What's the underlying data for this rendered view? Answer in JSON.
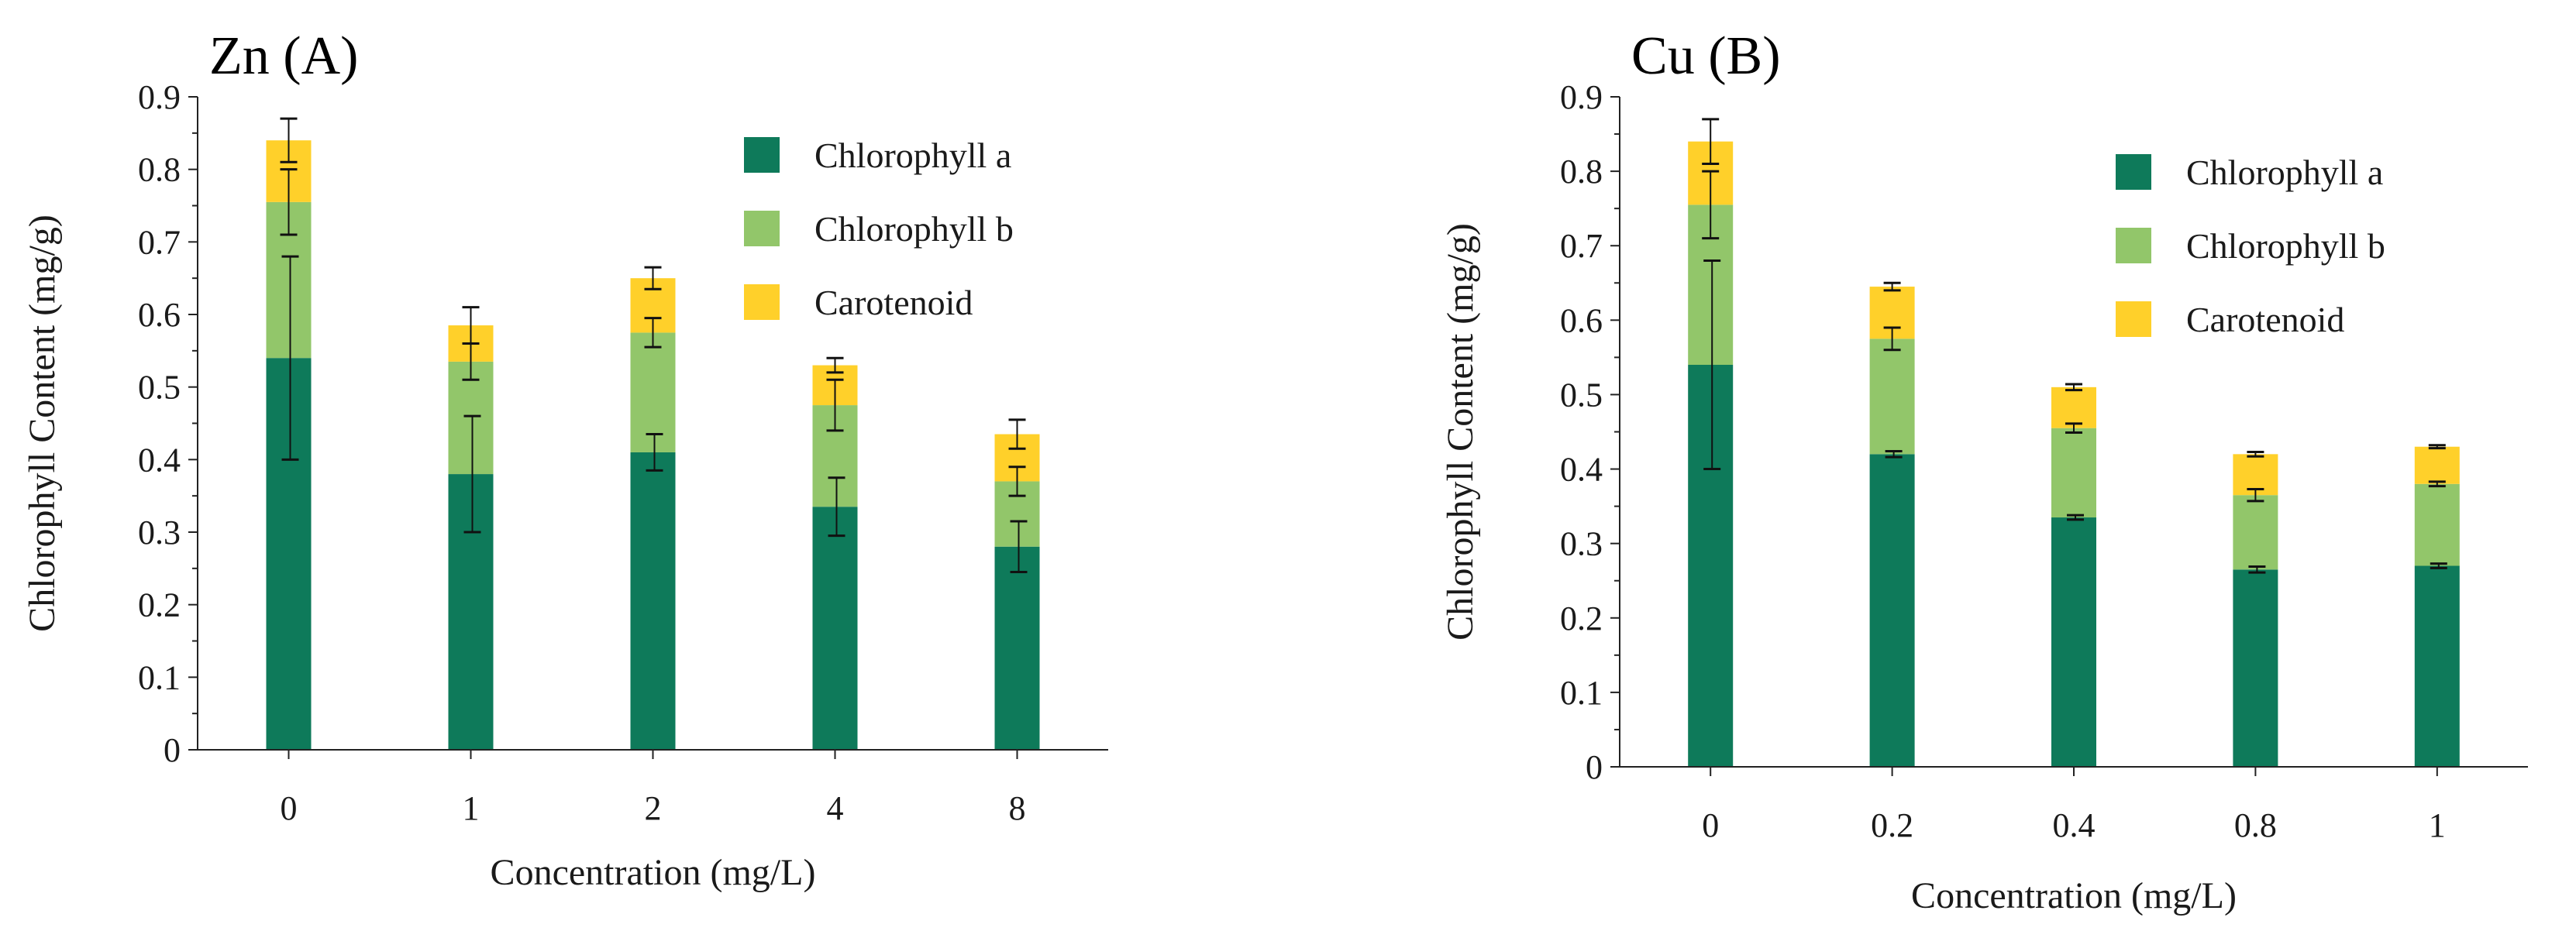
{
  "colors": {
    "chl_a": "#0e7a5a",
    "chl_b": "#92c66a",
    "carotenoid": "#ffd02a",
    "axis": "#222222",
    "errorbar": "#111111"
  },
  "chart_data": [
    {
      "type": "bar",
      "stacked": true,
      "title": "Zn (A)",
      "xlabel": "Concentration (mg/L)",
      "ylabel": "Chlorophyll Content (mg/g)",
      "ylim": [
        0,
        0.9
      ],
      "yticks": [
        "0",
        "0.1",
        "0.2",
        "0.3",
        "0.4",
        "0.5",
        "0.6",
        "0.7",
        "0.8",
        "0.9"
      ],
      "categories": [
        "0",
        "1",
        "2",
        "4",
        "8"
      ],
      "legend": [
        "Chlorophyll a",
        "Chlorophyll b",
        "Carotenoid"
      ],
      "legend_position": "top-right",
      "series": [
        {
          "name": "Chlorophyll a",
          "values": [
            0.54,
            0.38,
            0.41,
            0.335,
            0.28
          ],
          "errors": [
            0.14,
            0.08,
            0.025,
            0.04,
            0.035
          ]
        },
        {
          "name": "Chlorophyll b",
          "values": [
            0.215,
            0.155,
            0.165,
            0.14,
            0.09
          ],
          "errors": [
            0.045,
            0.025,
            0.02,
            0.035,
            0.02
          ]
        },
        {
          "name": "Carotenoid",
          "values": [
            0.085,
            0.05,
            0.075,
            0.055,
            0.065
          ],
          "errors": [
            0.03,
            0.025,
            0.015,
            0.01,
            0.02
          ]
        }
      ]
    },
    {
      "type": "bar",
      "stacked": true,
      "title": "Cu (B)",
      "xlabel": "Concentration (mg/L)",
      "ylabel": "Chlorophyll Content (mg/g)",
      "ylim": [
        0,
        0.9
      ],
      "yticks": [
        "0",
        "0.1",
        "0.2",
        "0.3",
        "0.4",
        "0.5",
        "0.6",
        "0.7",
        "0.8",
        "0.9"
      ],
      "categories": [
        "0",
        "0.2",
        "0.4",
        "0.8",
        "1"
      ],
      "legend": [
        "Chlorophyll a",
        "Chlorophyll b",
        "Carotenoid"
      ],
      "legend_position": "top-right",
      "series": [
        {
          "name": "Chlorophyll a",
          "values": [
            0.54,
            0.42,
            0.335,
            0.265,
            0.27
          ],
          "errors": [
            0.14,
            0.004,
            0.003,
            0.004,
            0.003
          ]
        },
        {
          "name": "Chlorophyll b",
          "values": [
            0.215,
            0.155,
            0.12,
            0.1,
            0.11
          ],
          "errors": [
            0.045,
            0.015,
            0.006,
            0.008,
            0.003
          ]
        },
        {
          "name": "Carotenoid",
          "values": [
            0.085,
            0.07,
            0.055,
            0.055,
            0.05
          ],
          "errors": [
            0.03,
            0.005,
            0.004,
            0.003,
            0.002
          ]
        }
      ]
    }
  ]
}
